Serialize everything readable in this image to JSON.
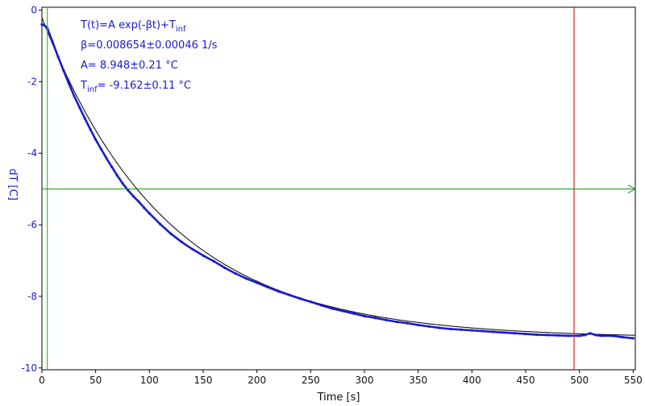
{
  "chart_data": {
    "type": "scatter",
    "xlabel": "Time [s]",
    "ylabel": "dT [C]",
    "xlim": [
      0,
      552
    ],
    "ylim": [
      -10.05,
      0.08
    ],
    "xticks": [
      0,
      50,
      100,
      150,
      200,
      250,
      300,
      350,
      400,
      450,
      500,
      550
    ],
    "yticks": [
      0,
      -2,
      -4,
      -6,
      -8,
      -10
    ],
    "grid": false,
    "legend": "none",
    "annotations": [
      {
        "main": "T(t)=A exp(-βt)+T",
        "sub": "inf"
      },
      {
        "main": "β=0.008654±0.00046 1/s",
        "sub": ""
      },
      {
        "main": "A= 8.948±0.21 °C",
        "sub": ""
      },
      {
        "pre": "T",
        "sub": "inf",
        "main": "= -9.162±0.11 °C"
      }
    ],
    "fit": {
      "A": 8.948,
      "beta": 0.008654,
      "Tinf": -9.162
    },
    "series": [
      {
        "kind": "measured",
        "color": "#1a1ad0",
        "x": [
          0,
          2,
          5,
          10,
          15,
          20,
          25,
          30,
          35,
          40,
          45,
          50,
          55,
          60,
          65,
          70,
          75,
          80,
          85,
          90,
          95,
          100,
          110,
          120,
          130,
          140,
          150,
          160,
          170,
          180,
          190,
          200,
          210,
          220,
          230,
          240,
          250,
          260,
          270,
          280,
          290,
          300,
          310,
          320,
          330,
          340,
          350,
          360,
          370,
          380,
          390,
          400,
          410,
          420,
          430,
          440,
          450,
          460,
          470,
          480,
          490,
          500,
          505,
          510,
          515,
          520,
          530,
          540,
          550
        ],
        "y": [
          -0.4,
          -0.42,
          -0.5,
          -0.9,
          -1.3,
          -1.68,
          -2.05,
          -2.4,
          -2.72,
          -3.03,
          -3.33,
          -3.62,
          -3.88,
          -4.14,
          -4.38,
          -4.62,
          -4.84,
          -5.03,
          -5.2,
          -5.35,
          -5.52,
          -5.68,
          -5.98,
          -6.25,
          -6.48,
          -6.68,
          -6.86,
          -7.02,
          -7.2,
          -7.36,
          -7.5,
          -7.62,
          -7.74,
          -7.86,
          -7.96,
          -8.06,
          -8.15,
          -8.25,
          -8.34,
          -8.41,
          -8.48,
          -8.55,
          -8.6,
          -8.66,
          -8.71,
          -8.75,
          -8.8,
          -8.84,
          -8.88,
          -8.91,
          -8.93,
          -8.95,
          -8.97,
          -8.99,
          -9.01,
          -9.03,
          -9.05,
          -9.07,
          -9.08,
          -9.09,
          -9.1,
          -9.1,
          -9.08,
          -9.03,
          -9.08,
          -9.1,
          -9.1,
          -9.14,
          -9.17
        ]
      }
    ],
    "markers": {
      "vertical_green_x": 5,
      "vertical_red_x": 495,
      "horizontal_green_y": -5
    },
    "colors": {
      "data": "#1a1ad0",
      "fit": "#000000",
      "green_marker": "#1a8a1a",
      "green_vline": "#22cc22",
      "red_marker": "#dd2222",
      "axis_y_text": "#1a1ad0"
    }
  }
}
